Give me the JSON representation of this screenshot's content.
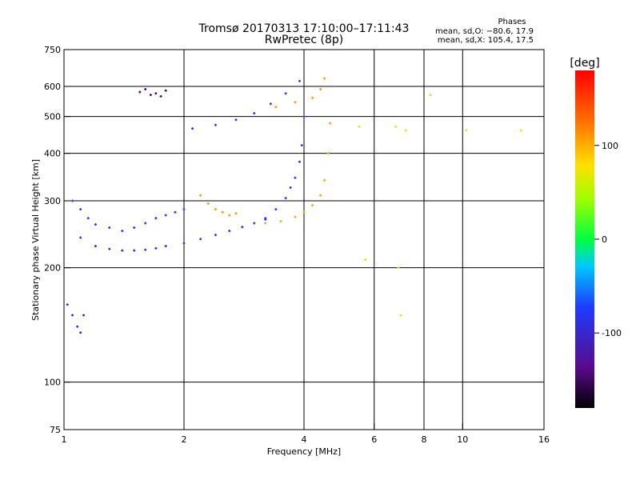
{
  "chart_data": {
    "type": "scatter",
    "title": "Tromsø 20170313 17:10:00–17:11:43",
    "subtitle": "RwPretec (8p)",
    "phase_info": {
      "header": "Phases",
      "line_o": "mean, sd,O: −80.6, 17.9",
      "line_x": "mean, sd,X: 105.4, 17.5"
    },
    "xlabel": "Frequency [MHz]",
    "ylabel": "Stationary phase Virtual Height [km]",
    "x_scale": "log",
    "y_scale": "log",
    "xlim": [
      1,
      16
    ],
    "ylim": [
      75,
      750
    ],
    "x_ticks": [
      1,
      2,
      4,
      6,
      8,
      10,
      16
    ],
    "x_tick_labels": [
      "1",
      "2",
      "4",
      "6",
      "8",
      "10",
      "16"
    ],
    "y_ticks": [
      75,
      100,
      200,
      300,
      400,
      500,
      600,
      750
    ],
    "y_tick_labels": [
      "75",
      "100",
      "200",
      "300",
      "400",
      "500",
      "600",
      "750"
    ],
    "grid": true,
    "colorbar": {
      "label": "[deg]",
      "range": [
        -180,
        180
      ],
      "ticks": [
        100,
        0,
        -100
      ],
      "tick_labels": [
        "100",
        "0",
        "-100"
      ]
    },
    "series": [
      {
        "trace": "o_mode_layer",
        "phase": -95,
        "x": [
          1.1,
          1.2,
          1.3,
          1.4,
          1.5,
          1.6,
          1.7,
          1.8,
          2.0,
          2.2,
          2.4,
          2.6,
          2.8,
          3.0,
          3.2
        ],
        "y": [
          240,
          228,
          224,
          222,
          222,
          223,
          225,
          228,
          232,
          238,
          244,
          250,
          256,
          262,
          268
        ]
      },
      {
        "trace": "o_mode_spread",
        "phase": -85,
        "x": [
          1.05,
          1.1,
          1.15,
          1.2,
          1.3,
          1.4,
          1.5,
          1.6,
          1.7,
          1.8,
          1.9,
          2.0
        ],
        "y": [
          300,
          285,
          270,
          260,
          255,
          250,
          255,
          262,
          270,
          275,
          280,
          285
        ]
      },
      {
        "trace": "o_mode_cusp",
        "phase": -80,
        "x": [
          3.2,
          3.4,
          3.6,
          3.7,
          3.8,
          3.9,
          3.95,
          4.0
        ],
        "y": [
          270,
          285,
          305,
          325,
          345,
          380,
          420,
          500
        ]
      },
      {
        "trace": "x_mode_layer",
        "phase": 105,
        "x": [
          3.2,
          3.5,
          3.8,
          4.0,
          4.2,
          4.4,
          4.5,
          4.6,
          4.65
        ],
        "y": [
          262,
          265,
          272,
          280,
          292,
          310,
          340,
          400,
          480
        ]
      },
      {
        "trace": "x_mode_blob",
        "phase": 110,
        "x": [
          2.2,
          2.3,
          2.4,
          2.5,
          2.6,
          2.7
        ],
        "y": [
          310,
          295,
          285,
          280,
          275,
          278
        ]
      },
      {
        "trace": "multihop_o",
        "phase": -90,
        "x": [
          2.1,
          2.4,
          2.7,
          3.0,
          3.3,
          3.6,
          3.9
        ],
        "y": [
          465,
          475,
          490,
          510,
          540,
          575,
          620
        ]
      },
      {
        "trace": "multihop_x",
        "phase": 110,
        "x": [
          3.4,
          3.8,
          4.2,
          4.4,
          4.5
        ],
        "y": [
          530,
          545,
          560,
          590,
          630
        ]
      },
      {
        "trace": "low_echo",
        "phase": -95,
        "x": [
          1.02,
          1.05,
          1.08,
          1.1,
          1.12
        ],
        "y": [
          160,
          150,
          140,
          135,
          150
        ]
      },
      {
        "trace": "high_blob",
        "phase": -150,
        "x": [
          1.55,
          1.6,
          1.65,
          1.7,
          1.75,
          1.8
        ],
        "y": [
          580,
          590,
          570,
          575,
          565,
          585
        ]
      },
      {
        "trace": "scatter_misc",
        "phase": 50,
        "x": [
          5.5,
          5.7,
          6.8,
          7.2,
          8.3,
          10.2,
          14.0,
          6.9,
          7.0
        ],
        "y": [
          470,
          210,
          470,
          460,
          570,
          460,
          460,
          200,
          150
        ]
      }
    ]
  }
}
